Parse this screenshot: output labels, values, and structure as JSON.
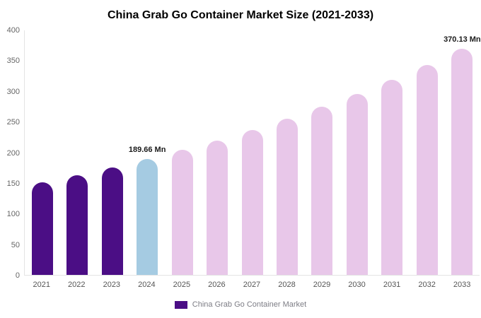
{
  "chart_data": {
    "type": "bar",
    "title": "China Grab Go Container Market Size (2021-2033)",
    "categories": [
      "2021",
      "2022",
      "2023",
      "2024",
      "2025",
      "2026",
      "2027",
      "2028",
      "2029",
      "2030",
      "2031",
      "2032",
      "2033"
    ],
    "values": [
      151.8,
      163.5,
      176.1,
      189.66,
      204.3,
      220.1,
      237.1,
      255.4,
      275.1,
      296.3,
      319.2,
      343.8,
      370.13
    ],
    "unit": "Mn",
    "xlabel": "",
    "ylabel": "",
    "ylim": [
      0,
      400
    ],
    "yticks": [
      0,
      50,
      100,
      150,
      200,
      250,
      300,
      350,
      400
    ],
    "grid": false,
    "colors": [
      "#4b0e85",
      "#4b0e85",
      "#4b0e85",
      "#a5cbe2",
      "#e8c7e9",
      "#e8c7e9",
      "#e8c7e9",
      "#e8c7e9",
      "#e8c7e9",
      "#e8c7e9",
      "#e8c7e9",
      "#e8c7e9",
      "#e8c7e9"
    ],
    "annotations": [
      {
        "category": "2024",
        "text": "189.66 Mn"
      },
      {
        "category": "2033",
        "text": "370.13 Mn"
      }
    ],
    "legend_position": "bottom",
    "legend": [
      "China Grab Go Container Market"
    ],
    "legend_swatch_color": "#4b0e85"
  }
}
